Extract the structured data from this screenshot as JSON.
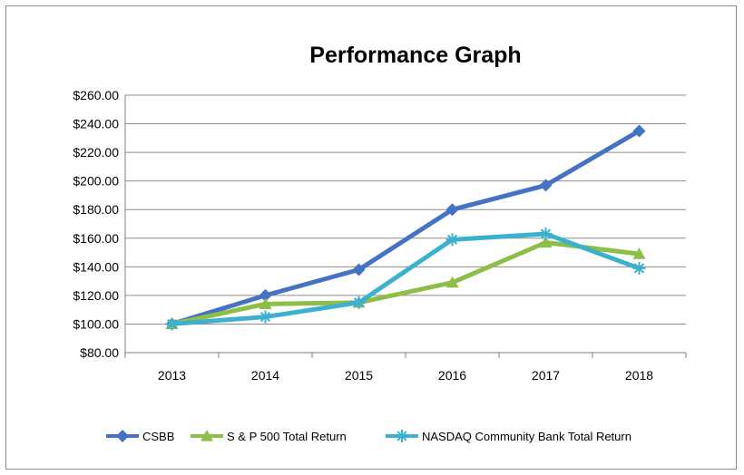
{
  "chart_data": {
    "type": "line",
    "title": "Performance Graph",
    "xlabel": "",
    "ylabel": "",
    "categories": [
      "2013",
      "2014",
      "2015",
      "2016",
      "2017",
      "2018"
    ],
    "ylim": [
      80,
      260
    ],
    "yticks": [
      80,
      100,
      120,
      140,
      160,
      180,
      200,
      220,
      240,
      260
    ],
    "ytick_labels": [
      "$80.00",
      "$100.00",
      "$120.00",
      "$140.00",
      "$160.00",
      "$180.00",
      "$200.00",
      "$220.00",
      "$240.00",
      "$260.00"
    ],
    "grid": true,
    "legend_position": "bottom",
    "series": [
      {
        "name": "CSBB",
        "marker": "diamond",
        "color": "#4472C4",
        "values": [
          100,
          120,
          138,
          180,
          197,
          235
        ]
      },
      {
        "name": "S & P 500  Total Return",
        "marker": "triangle",
        "color": "#8DBE48",
        "values": [
          100,
          114,
          115,
          129,
          157,
          149
        ]
      },
      {
        "name": "NASDAQ Community Bank Total Return",
        "marker": "asterisk",
        "color": "#3CB0CF",
        "values": [
          100,
          105,
          115,
          159,
          163,
          139
        ]
      }
    ]
  }
}
